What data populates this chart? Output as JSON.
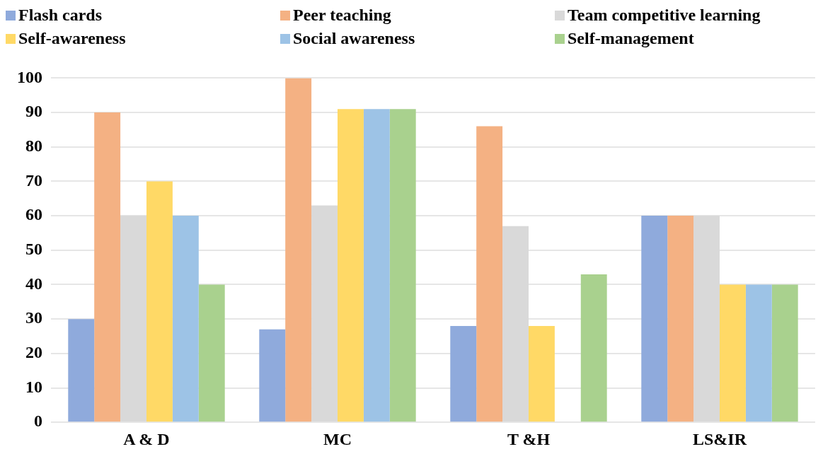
{
  "chart_data": {
    "type": "bar",
    "categories": [
      "A & D",
      "MC",
      "T &H",
      "LS&IR"
    ],
    "series": [
      {
        "name": "Flash cards",
        "color": "#8faadc",
        "values": [
          30,
          27,
          28,
          60
        ]
      },
      {
        "name": "Peer teaching",
        "color": "#f4b183",
        "values": [
          90,
          100,
          86,
          60
        ]
      },
      {
        "name": "Team competitive learning",
        "color": "#d9d9d9",
        "values": [
          60,
          63,
          57,
          60
        ]
      },
      {
        "name": "Self-awareness",
        "color": "#ffd966",
        "values": [
          70,
          91,
          28,
          40
        ]
      },
      {
        "name": "Social awareness",
        "color": "#9dc3e6",
        "values": [
          60,
          91,
          0,
          40
        ]
      },
      {
        "name": "Self-management",
        "color": "#a9d18e",
        "values": [
          40,
          91,
          43,
          40
        ]
      }
    ],
    "ylim": [
      0,
      100
    ],
    "yticks": [
      0,
      10,
      20,
      30,
      40,
      50,
      60,
      70,
      80,
      90,
      100
    ],
    "grid": "y",
    "legend": "top"
  }
}
